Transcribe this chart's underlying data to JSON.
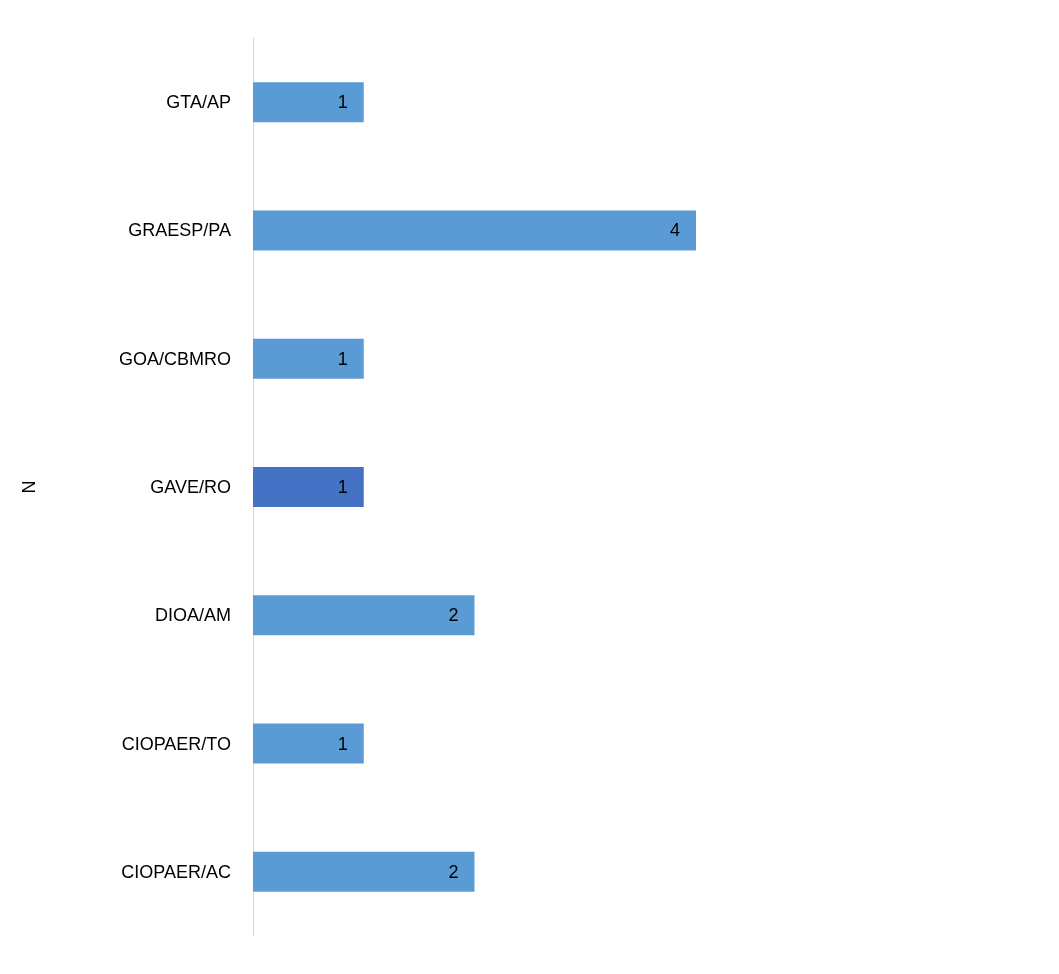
{
  "chart_data": {
    "type": "bar",
    "orientation": "horizontal",
    "stacked": true,
    "ylabel": "N",
    "categories": [
      "GTA/AP",
      "GRAESP/PA",
      "GOA/CBMRO",
      "GAVE/RO",
      "DIOA/AM",
      "CIOPAER/TO",
      "CIOPAER/AC"
    ],
    "series": [
      {
        "color": "#5b9bd5",
        "values": [
          1,
          4,
          1,
          null,
          2,
          1,
          2
        ]
      },
      {
        "color": "#4472c4",
        "values": [
          null,
          null,
          null,
          1,
          null,
          null,
          null
        ]
      }
    ],
    "data_labels": true
  }
}
